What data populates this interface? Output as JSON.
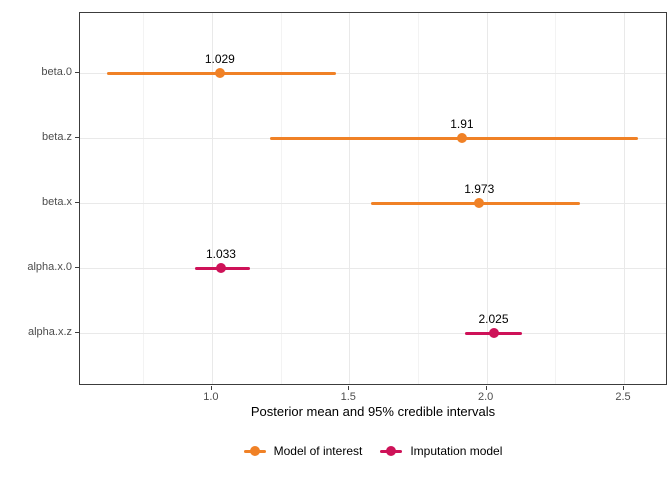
{
  "chart_data": {
    "type": "pointrange",
    "title": "",
    "xlabel": "Posterior mean and 95% credible intervals",
    "ylabel": "",
    "xlim": [
      0.52,
      2.66
    ],
    "x_major_ticks": [
      1.0,
      1.5,
      2.0,
      2.5
    ],
    "x_tick_labels": [
      "1.0",
      "1.5",
      "2.0",
      "2.5"
    ],
    "x_minor_gridlines": [
      0.75,
      1.25,
      1.75,
      2.25
    ],
    "categories": [
      "beta.0",
      "beta.z",
      "beta.x",
      "alpha.x.0",
      "alpha.x.z"
    ],
    "points": [
      {
        "param": "beta.0",
        "mean": 1.029,
        "label": "1.029",
        "lower": 0.62,
        "upper": 1.45,
        "series": "Model of interest"
      },
      {
        "param": "beta.z",
        "mean": 1.91,
        "label": "1.91",
        "lower": 1.21,
        "upper": 2.55,
        "series": "Model of interest"
      },
      {
        "param": "beta.x",
        "mean": 1.973,
        "label": "1.973",
        "lower": 1.58,
        "upper": 2.34,
        "series": "Model of interest"
      },
      {
        "param": "alpha.x.0",
        "mean": 1.033,
        "label": "1.033",
        "lower": 0.94,
        "upper": 1.14,
        "series": "Imputation model"
      },
      {
        "param": "alpha.x.z",
        "mean": 2.025,
        "label": "2.025",
        "lower": 1.92,
        "upper": 2.13,
        "series": "Imputation model"
      }
    ],
    "legend": [
      {
        "label": "Model of interest",
        "color": "#F08126"
      },
      {
        "label": "Imputation model",
        "color": "#CE1258"
      }
    ],
    "legend_position": "bottom",
    "grid": true
  },
  "colors": {
    "grid_major": "#e9e9e9",
    "grid_minor": "#f3f3f3",
    "panel_border": "#3c3c3c",
    "axis_text": "#4d4d4d",
    "label_text": "#000000"
  }
}
